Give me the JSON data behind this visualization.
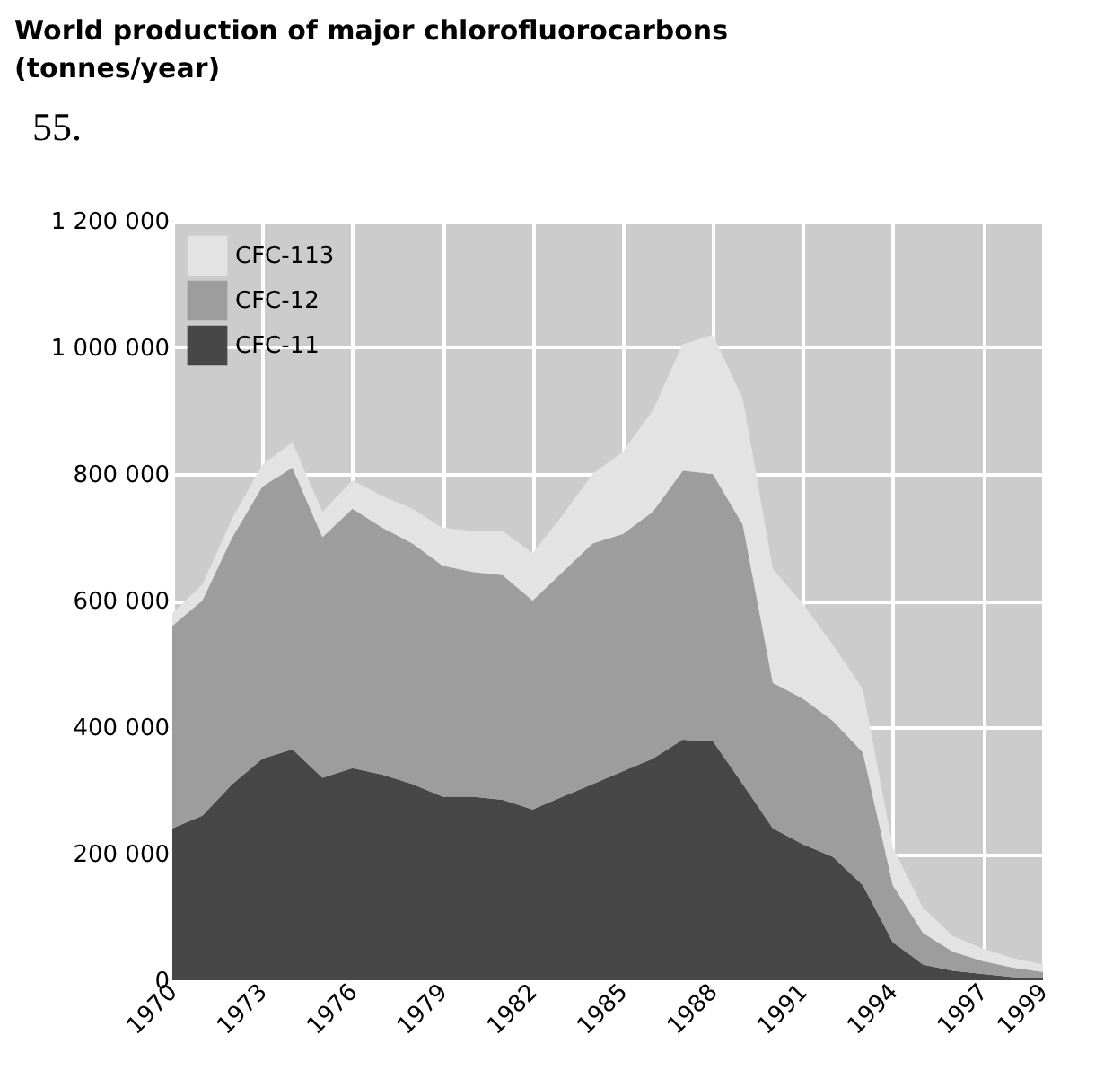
{
  "chart_data": {
    "type": "area",
    "title": "World production of major chlorofluorocarbons (tonnes/year)",
    "annotations": [
      "55."
    ],
    "stacked": true,
    "x": [
      1970,
      1971,
      1972,
      1973,
      1974,
      1975,
      1976,
      1977,
      1978,
      1979,
      1980,
      1981,
      1982,
      1983,
      1984,
      1985,
      1986,
      1987,
      1988,
      1989,
      1990,
      1991,
      1992,
      1993,
      1994,
      1995,
      1996,
      1997,
      1998,
      1999
    ],
    "series": [
      {
        "name": "CFC-11",
        "color": "#474747",
        "values": [
          240000,
          260000,
          310000,
          350000,
          365000,
          320000,
          335000,
          325000,
          310000,
          290000,
          290000,
          285000,
          270000,
          290000,
          310000,
          330000,
          350000,
          380000,
          378000,
          310000,
          240000,
          215000,
          195000,
          150000,
          60000,
          25000,
          15000,
          10000,
          5000,
          3000
        ]
      },
      {
        "name": "CFC-12",
        "color": "#9d9d9d",
        "values": [
          320000,
          340000,
          390000,
          430000,
          445000,
          380000,
          410000,
          390000,
          380000,
          365000,
          355000,
          355000,
          330000,
          355000,
          380000,
          375000,
          390000,
          425000,
          422000,
          410000,
          230000,
          230000,
          215000,
          210000,
          90000,
          50000,
          30000,
          20000,
          15000,
          10000
        ]
      },
      {
        "name": "CFC-113",
        "color": "#e3e3e3",
        "values": [
          20000,
          25000,
          30000,
          35000,
          40000,
          40000,
          45000,
          50000,
          55000,
          60000,
          65000,
          70000,
          75000,
          90000,
          110000,
          130000,
          160000,
          200000,
          220000,
          200000,
          180000,
          150000,
          120000,
          100000,
          60000,
          40000,
          25000,
          20000,
          15000,
          12000
        ]
      }
    ],
    "xlim": [
      1970,
      1999
    ],
    "xticks": [
      1970,
      1973,
      1976,
      1979,
      1982,
      1985,
      1988,
      1991,
      1994,
      1997,
      1999
    ],
    "ylim": [
      0,
      1200000
    ],
    "yticks": [
      {
        "value": 0,
        "label": "0"
      },
      {
        "value": 200000,
        "label": "200 000"
      },
      {
        "value": 400000,
        "label": "400 000"
      },
      {
        "value": 600000,
        "label": "600 000"
      },
      {
        "value": 800000,
        "label": "800 000"
      },
      {
        "value": 1000000,
        "label": "1 000 000"
      },
      {
        "value": 1200000,
        "label": "1 200 000"
      }
    ],
    "grid": true,
    "legend": "top left"
  }
}
